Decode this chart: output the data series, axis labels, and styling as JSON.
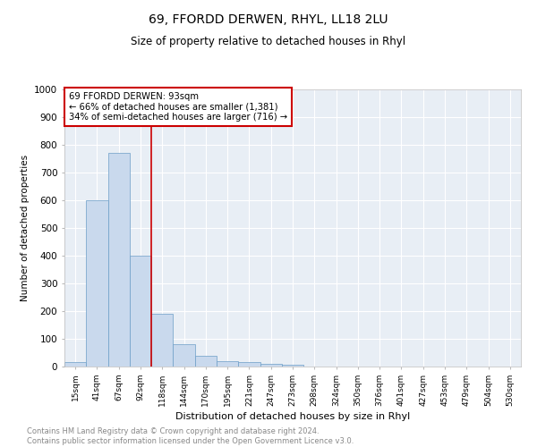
{
  "title1": "69, FFORDD DERWEN, RHYL, LL18 2LU",
  "title2": "Size of property relative to detached houses in Rhyl",
  "xlabel": "Distribution of detached houses by size in Rhyl",
  "ylabel": "Number of detached properties",
  "bin_labels": [
    "15sqm",
    "41sqm",
    "67sqm",
    "92sqm",
    "118sqm",
    "144sqm",
    "170sqm",
    "195sqm",
    "221sqm",
    "247sqm",
    "273sqm",
    "298sqm",
    "324sqm",
    "350sqm",
    "376sqm",
    "401sqm",
    "427sqm",
    "453sqm",
    "479sqm",
    "504sqm",
    "530sqm"
  ],
  "bar_values": [
    15,
    600,
    770,
    400,
    190,
    80,
    40,
    20,
    15,
    10,
    8,
    0,
    0,
    0,
    0,
    0,
    0,
    0,
    0,
    0,
    0
  ],
  "bar_color": "#c9d9ed",
  "bar_edge_color": "#6b9dc7",
  "background_color": "#e8eef5",
  "grid_color": "#ffffff",
  "annotation_text_line1": "69 FFORDD DERWEN: 93sqm",
  "annotation_text_line2": "← 66% of detached houses are smaller (1,381)",
  "annotation_text_line3": "34% of semi-detached houses are larger (716) →",
  "annotation_box_color": "#ffffff",
  "annotation_border_color": "#cc0000",
  "ylim": [
    0,
    1000
  ],
  "yticks": [
    0,
    100,
    200,
    300,
    400,
    500,
    600,
    700,
    800,
    900,
    1000
  ],
  "footnote1": "Contains HM Land Registry data © Crown copyright and database right 2024.",
  "footnote2": "Contains public sector information licensed under the Open Government Licence v3.0.",
  "footnote_color": "#888888",
  "vline_color": "#cc0000",
  "vline_x": 3.5
}
